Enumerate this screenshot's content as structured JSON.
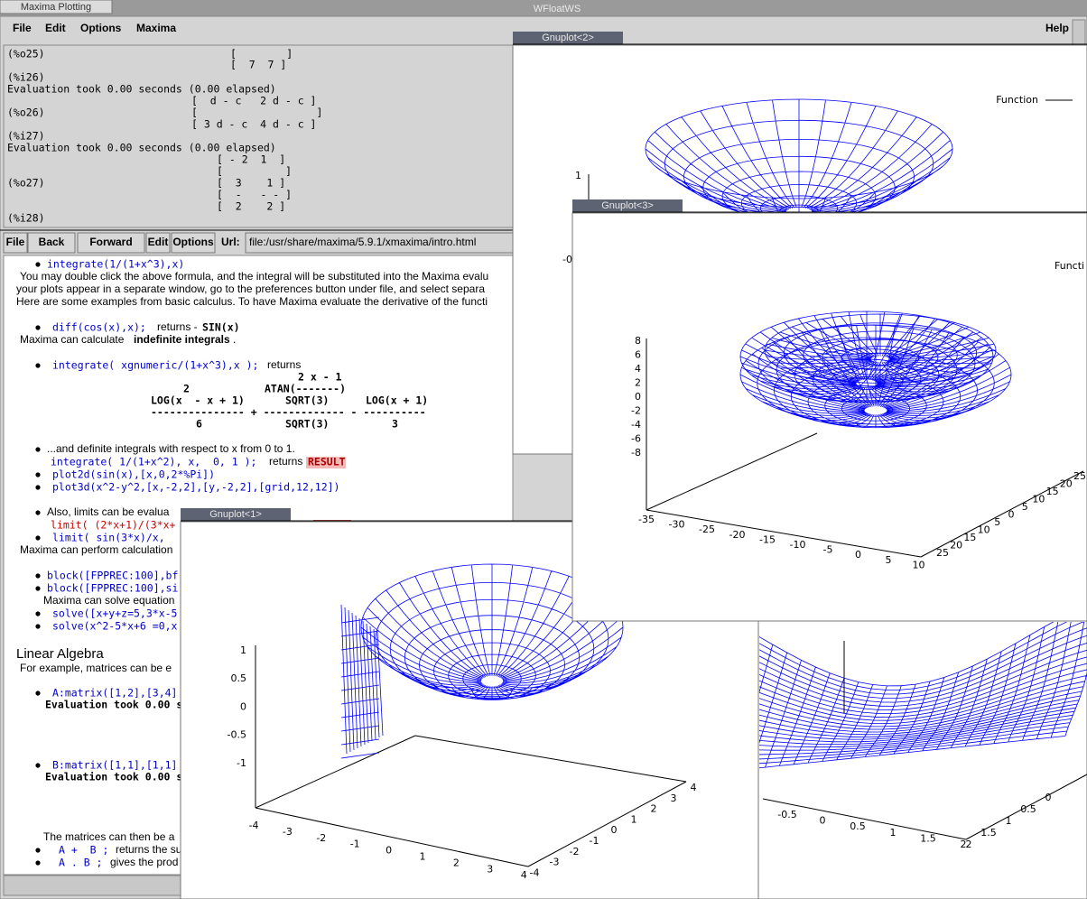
{
  "top_bar": {
    "tab": "Maxima Plotting",
    "title": "WFloatWS"
  },
  "menu": [
    "File",
    "Edit",
    "Options",
    "Maxima"
  ],
  "help": "Help",
  "console": [
    "(%o25)",
    "[        ]",
    "[  7  7 ]",
    "(%i26)",
    "Evaluation took 0.00 seconds (0.00 elapsed)",
    "[  d - c   2 d - c ]",
    "(%o26)",
    "[                   ]",
    "[ 3 d - c  4 d - c ]",
    "(%i27)",
    "Evaluation took 0.00 seconds (0.00 elapsed)",
    "[ - 2  1  ]",
    "[          ]",
    "(%o27)",
    "[  3    1 ]",
    "[  -   - - ]",
    "[  2    2 ]",
    "(%i28)"
  ],
  "toolbar": {
    "buttons": [
      "File",
      "Back",
      "Forward",
      "Edit",
      "Options"
    ],
    "url_label": "Url:",
    "url": "file:/usr/share/maxima/5.9.1/xmaxima/intro.html"
  },
  "document": [
    "integrate(1/(1+x^3),x)",
    "You may double click the above formula, and the integral will be substituted into the Maxima evalu",
    "your plots appear in a separate window, go to the preferences button under file, and select separa",
    "Here are some examples from basic calculus. To have Maxima evaluate the derivative of the functi",
    "diff(cos(x),x);",
    "returns -",
    "SIN(x)",
    "Maxima can calculate",
    "indefinite integrals",
    ".",
    "integrate( xgnumeric/(1+x^3),x );",
    "returns",
    "2 x - 1",
    "2",
    "ATAN(-------)",
    "LOG(x  - x + 1)",
    "SQRT(3)",
    "LOG(x + 1)",
    "--------------- + ------------- - ----------",
    "6",
    "SQRT(3)",
    "3",
    "...and definite integrals with respect to x from 0 to 1.",
    "integrate( 1/(1+x^2), x,  0, 1 );",
    "returns",
    "RESULT",
    "plot2d(sin(x),[x,0,2*%Pi])",
    "plot3d(x^2-y^2,[x,-2,2],[y,-2,2],[grid,12,12])",
    "Also, limits can be evalua",
    "limit( (2*x+1)/(3*x+",
    "limit( sin(3*x)/x,",
    "Maxima can perform calculation",
    "block([FPPREC:100],bf",
    "block([FPPREC:100],si",
    "Maxima can solve equation",
    "solve([x+y+z=5,3*x-5",
    "solve(x^2-5*x+6 =0,x",
    "Linear Algebra",
    "For example, matrices can be e",
    "A:matrix([1,2],[3,4]",
    "Evaluation took 0.00 s",
    "B:matrix([1,1],[1,1]",
    "Evaluation took 0.00 s",
    "The matrices can then be a",
    "A +  B ;",
    "returns the su",
    "A . B ;",
    "gives the prod"
  ],
  "plots": [
    {
      "title": "Gnuplot<2>",
      "legend": "Function",
      "z_ticks": [
        "1",
        "-0"
      ]
    },
    {
      "title": "Gnuplot<3>",
      "legend": "Functi",
      "z_ticks": [
        "8",
        "6",
        "4",
        "2",
        "0",
        "-2",
        "-4",
        "-6",
        "-8"
      ],
      "x_ticks": [
        "-35",
        "-30",
        "-25",
        "-20",
        "-15",
        "-10",
        "-5",
        "0",
        "5",
        "10"
      ],
      "y_ticks": [
        "25",
        "20",
        "15",
        "10",
        "5",
        "0",
        "5",
        "10",
        "15",
        "20",
        "25"
      ]
    },
    {
      "title": "Gnuplot<1>",
      "z_ticks": [
        "1",
        "0.5",
        "0",
        "-0.5",
        "-1"
      ],
      "x_ticks": [
        "-4",
        "-3",
        "-2",
        "-1",
        "0",
        "1",
        "2",
        "3",
        "4"
      ],
      "y_ticks": [
        "4",
        "3",
        "2",
        "1",
        "0",
        "-1",
        "-2",
        "-3",
        "-4"
      ]
    },
    {
      "x_ticks": [
        "-0.5",
        "0",
        "0.5",
        "1",
        "1.5",
        "2"
      ],
      "y_ticks": [
        "2",
        "1.5",
        "1",
        "0.5",
        "0"
      ]
    }
  ]
}
